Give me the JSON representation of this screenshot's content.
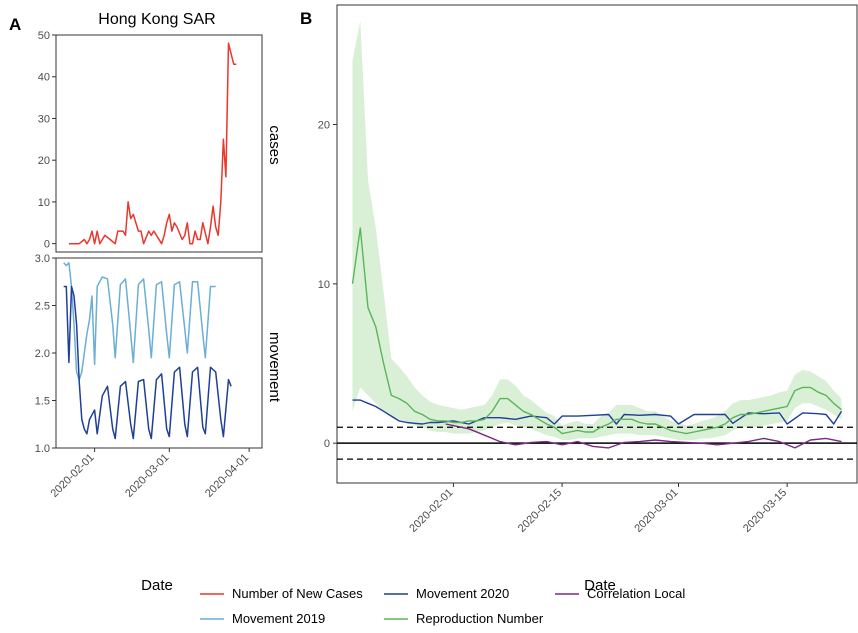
{
  "figure": {
    "panel_a_letter": "A",
    "panel_b_letter": "B"
  },
  "chart_data": [
    {
      "type": "line",
      "panel": "A",
      "title": "Hong Kong SAR",
      "xlabel": "Date",
      "x_ticks": [
        "2020-02-01",
        "2020-03-01",
        "2020-04-01"
      ],
      "facets": [
        {
          "strip": "cases",
          "ylim": [
            -2,
            50
          ],
          "y_ticks": [
            0,
            10,
            20,
            30,
            40,
            50
          ],
          "series": [
            {
              "name": "Number of New Cases",
              "color": "#e8382d",
              "x": [
                "2020-01-22",
                "2020-01-24",
                "2020-01-26",
                "2020-01-28",
                "2020-01-29",
                "2020-01-30",
                "2020-01-31",
                "2020-02-01",
                "2020-02-02",
                "2020-02-03",
                "2020-02-04",
                "2020-02-05",
                "2020-02-07",
                "2020-02-09",
                "2020-02-10",
                "2020-02-11",
                "2020-02-12",
                "2020-02-13",
                "2020-02-14",
                "2020-02-15",
                "2020-02-16",
                "2020-02-18",
                "2020-02-19",
                "2020-02-20",
                "2020-02-22",
                "2020-02-23",
                "2020-02-24",
                "2020-02-25",
                "2020-02-27",
                "2020-02-28",
                "2020-02-29",
                "2020-03-01",
                "2020-03-02",
                "2020-03-03",
                "2020-03-04",
                "2020-03-06",
                "2020-03-07",
                "2020-03-08",
                "2020-03-09",
                "2020-03-10",
                "2020-03-11",
                "2020-03-12",
                "2020-03-13",
                "2020-03-14",
                "2020-03-16",
                "2020-03-17",
                "2020-03-18",
                "2020-03-19",
                "2020-03-20",
                "2020-03-21",
                "2020-03-22",
                "2020-03-23",
                "2020-03-24",
                "2020-03-26",
                "2020-03-27"
              ],
              "y": [
                0,
                0,
                0,
                1,
                0,
                1,
                3,
                0,
                3,
                0,
                1,
                2,
                1,
                0,
                3,
                3,
                3,
                2,
                10,
                6,
                7,
                3,
                3,
                0,
                3,
                2,
                3,
                2,
                0,
                2,
                5,
                7,
                3,
                5,
                4,
                1,
                2,
                5,
                0,
                0,
                3,
                1,
                1,
                5,
                0,
                4,
                9,
                4,
                2,
                10,
                25,
                16,
                48,
                43,
                43
              ]
            }
          ]
        },
        {
          "strip": "movement",
          "ylim": [
            1.0,
            3.0
          ],
          "y_ticks": [
            "1.0",
            "1.5",
            "2.0",
            "2.5",
            "3.0"
          ],
          "series": [
            {
              "name": "Movement 2019",
              "color": "#6baed6",
              "x": [
                "2020-01-20",
                "2020-01-21",
                "2020-01-22",
                "2020-01-23",
                "2020-01-24",
                "2020-01-25",
                "2020-01-26",
                "2020-01-27",
                "2020-01-28",
                "2020-01-29",
                "2020-01-30",
                "2020-01-31",
                "2020-02-01",
                "2020-02-02",
                "2020-02-04",
                "2020-02-06",
                "2020-02-08",
                "2020-02-09",
                "2020-02-11",
                "2020-02-13",
                "2020-02-15",
                "2020-02-16",
                "2020-02-18",
                "2020-02-20",
                "2020-02-22",
                "2020-02-23",
                "2020-02-25",
                "2020-02-27",
                "2020-02-29",
                "2020-03-01",
                "2020-03-03",
                "2020-03-05",
                "2020-03-07",
                "2020-03-08",
                "2020-03-10",
                "2020-03-12",
                "2020-03-14",
                "2020-03-15",
                "2020-03-17",
                "2020-03-19"
              ],
              "y": [
                2.95,
                2.92,
                2.95,
                2.7,
                2.3,
                1.8,
                1.72,
                1.8,
                2.0,
                2.2,
                2.35,
                2.6,
                1.88,
                2.7,
                2.8,
                2.78,
                2.3,
                1.95,
                2.72,
                2.78,
                2.2,
                1.9,
                2.72,
                2.78,
                2.25,
                1.95,
                2.72,
                2.75,
                2.2,
                1.95,
                2.72,
                2.75,
                2.25,
                2.0,
                2.75,
                2.75,
                2.2,
                1.95,
                2.7,
                2.7
              ]
            },
            {
              "name": "Movement 2020",
              "color": "#1f3f99",
              "x": [
                "2020-01-20",
                "2020-01-21",
                "2020-01-22",
                "2020-01-23",
                "2020-01-24",
                "2020-01-25",
                "2020-01-26",
                "2020-01-27",
                "2020-01-28",
                "2020-01-29",
                "2020-01-30",
                "2020-01-31",
                "2020-02-01",
                "2020-02-02",
                "2020-02-04",
                "2020-02-06",
                "2020-02-08",
                "2020-02-09",
                "2020-02-11",
                "2020-02-13",
                "2020-02-15",
                "2020-02-16",
                "2020-02-18",
                "2020-02-20",
                "2020-02-22",
                "2020-02-23",
                "2020-02-25",
                "2020-02-27",
                "2020-02-29",
                "2020-03-01",
                "2020-03-03",
                "2020-03-05",
                "2020-03-07",
                "2020-03-08",
                "2020-03-10",
                "2020-03-12",
                "2020-03-14",
                "2020-03-15",
                "2020-03-17",
                "2020-03-19",
                "2020-03-21",
                "2020-03-22",
                "2020-03-24",
                "2020-03-25"
              ],
              "y": [
                2.7,
                2.7,
                1.9,
                2.7,
                2.6,
                2.3,
                1.7,
                1.3,
                1.2,
                1.15,
                1.3,
                1.35,
                1.4,
                1.15,
                1.55,
                1.65,
                1.2,
                1.1,
                1.65,
                1.7,
                1.25,
                1.1,
                1.7,
                1.72,
                1.2,
                1.1,
                1.72,
                1.78,
                1.2,
                1.12,
                1.8,
                1.85,
                1.25,
                1.12,
                1.8,
                1.85,
                1.22,
                1.15,
                1.85,
                1.8,
                1.3,
                1.12,
                1.72,
                1.65
              ]
            }
          ]
        }
      ]
    },
    {
      "type": "line",
      "panel": "B",
      "xlabel": "Date",
      "ylim": [
        -2.5,
        27.5
      ],
      "y_ticks": [
        0,
        10,
        20
      ],
      "x_ticks": [
        "2020-02-01",
        "2020-02-15",
        "2020-03-01",
        "2020-03-15"
      ],
      "reference_lines": {
        "solid": 0,
        "dashed": [
          -1,
          1
        ]
      },
      "series": [
        {
          "name": "Reproduction Number",
          "color": "#5ab55a",
          "band_color": "#d9efd6",
          "x": [
            "2020-01-19",
            "2020-01-20",
            "2020-01-21",
            "2020-01-22",
            "2020-01-23",
            "2020-01-24",
            "2020-01-25",
            "2020-01-26",
            "2020-01-27",
            "2020-01-28",
            "2020-01-29",
            "2020-01-30",
            "2020-01-31",
            "2020-02-01",
            "2020-02-02",
            "2020-02-03",
            "2020-02-04",
            "2020-02-05",
            "2020-02-06",
            "2020-02-07",
            "2020-02-08",
            "2020-02-09",
            "2020-02-10",
            "2020-02-11",
            "2020-02-12",
            "2020-02-13",
            "2020-02-14",
            "2020-02-15",
            "2020-02-16",
            "2020-02-17",
            "2020-02-18",
            "2020-02-19",
            "2020-02-20",
            "2020-02-21",
            "2020-02-22",
            "2020-02-23",
            "2020-02-24",
            "2020-02-25",
            "2020-02-26",
            "2020-02-27",
            "2020-02-28",
            "2020-02-29",
            "2020-03-01",
            "2020-03-02",
            "2020-03-03",
            "2020-03-04",
            "2020-03-05",
            "2020-03-06",
            "2020-03-07",
            "2020-03-08",
            "2020-03-09",
            "2020-03-10",
            "2020-03-11",
            "2020-03-12",
            "2020-03-13",
            "2020-03-14",
            "2020-03-15",
            "2020-03-16",
            "2020-03-17",
            "2020-03-18",
            "2020-03-19",
            "2020-03-20",
            "2020-03-21",
            "2020-03-22"
          ],
          "y": [
            10,
            13.5,
            8.5,
            7.3,
            5,
            3,
            2.8,
            2.5,
            2,
            1.8,
            1.5,
            1.4,
            1.4,
            1.3,
            1.3,
            1.4,
            1.4,
            1.5,
            2,
            2.8,
            2.8,
            2.4,
            2,
            1.8,
            1.5,
            1.2,
            1,
            0.6,
            0.7,
            0.8,
            0.7,
            0.7,
            1,
            1.2,
            1.5,
            1.5,
            1.5,
            1.3,
            1.2,
            1.2,
            1,
            0.8,
            0.7,
            0.6,
            0.7,
            0.8,
            0.9,
            1,
            1.2,
            1.6,
            1.8,
            1.8,
            1.9,
            2,
            2.1,
            2.2,
            2.3,
            3.3,
            3.5,
            3.5,
            3.2,
            3,
            2.5,
            2.1
          ],
          "lower": [
            2,
            3.5,
            3,
            2.5,
            2,
            1.7,
            1.5,
            1.3,
            1.1,
            1,
            0.8,
            0.7,
            0.7,
            0.6,
            0.6,
            0.6,
            0.7,
            0.8,
            1,
            1.2,
            1.3,
            1.1,
            1,
            0.9,
            0.7,
            0.5,
            0.4,
            0.2,
            0.2,
            0.3,
            0.3,
            0.3,
            0.4,
            0.5,
            0.6,
            0.6,
            0.6,
            0.5,
            0.5,
            0.5,
            0.4,
            0.3,
            0.2,
            0.2,
            0.2,
            0.3,
            0.3,
            0.4,
            0.5,
            0.8,
            1,
            1,
            1,
            1.1,
            1.2,
            1.3,
            1.4,
            2.2,
            2.5,
            2.5,
            2.3,
            2.1,
            1.8,
            1.5
          ],
          "upper": [
            24,
            26.5,
            16.5,
            13.5,
            9.5,
            5.3,
            4.8,
            4.2,
            3.5,
            3,
            2.6,
            2.4,
            2.3,
            2.2,
            2.1,
            2.2,
            2.3,
            2.4,
            3,
            4,
            4,
            3.6,
            3,
            2.7,
            2.3,
            1.9,
            1.7,
            1.1,
            1.3,
            1.4,
            1.2,
            1.2,
            1.7,
            1.9,
            2.4,
            2.4,
            2.4,
            2.2,
            2,
            2,
            1.7,
            1.4,
            1.3,
            1.1,
            1.2,
            1.4,
            1.5,
            1.7,
            2,
            2.5,
            2.7,
            2.7,
            2.8,
            2.9,
            3,
            3.2,
            3.3,
            4.3,
            4.6,
            4.5,
            4.2,
            3.9,
            3.3,
            2.8
          ]
        },
        {
          "name": "Movement 2020",
          "color": "#1f3f99",
          "x": [
            "2020-01-19",
            "2020-01-20",
            "2020-01-21",
            "2020-01-22",
            "2020-01-23",
            "2020-01-24",
            "2020-01-25",
            "2020-01-26",
            "2020-01-27",
            "2020-01-28",
            "2020-01-29",
            "2020-01-30",
            "2020-02-01",
            "2020-02-03",
            "2020-02-05",
            "2020-02-07",
            "2020-02-09",
            "2020-02-11",
            "2020-02-13",
            "2020-02-14",
            "2020-02-15",
            "2020-02-17",
            "2020-02-19",
            "2020-02-21",
            "2020-02-22",
            "2020-02-23",
            "2020-02-25",
            "2020-02-27",
            "2020-02-29",
            "2020-03-01",
            "2020-03-03",
            "2020-03-05",
            "2020-03-07",
            "2020-03-08",
            "2020-03-10",
            "2020-03-12",
            "2020-03-14",
            "2020-03-15",
            "2020-03-17",
            "2020-03-19",
            "2020-03-20",
            "2020-03-21",
            "2020-03-22"
          ],
          "y": [
            2.7,
            2.7,
            2.5,
            2.3,
            2,
            1.7,
            1.4,
            1.3,
            1.25,
            1.2,
            1.3,
            1.3,
            1.4,
            1.2,
            1.6,
            1.6,
            1.5,
            1.7,
            1.6,
            1.2,
            1.7,
            1.7,
            1.75,
            1.8,
            1.2,
            1.8,
            1.75,
            1.8,
            1.7,
            1.2,
            1.8,
            1.8,
            1.8,
            1.25,
            1.9,
            1.85,
            1.9,
            1.2,
            1.9,
            1.85,
            1.8,
            1.2,
            2
          ]
        },
        {
          "name": "Correlation Local",
          "color": "#7b2a83",
          "x": [
            "2020-01-31",
            "2020-02-01",
            "2020-02-03",
            "2020-02-05",
            "2020-02-07",
            "2020-02-09",
            "2020-02-11",
            "2020-02-13",
            "2020-02-15",
            "2020-02-17",
            "2020-02-19",
            "2020-02-21",
            "2020-02-23",
            "2020-02-25",
            "2020-02-27",
            "2020-02-29",
            "2020-03-02",
            "2020-03-04",
            "2020-03-06",
            "2020-03-08",
            "2020-03-10",
            "2020-03-12",
            "2020-03-14",
            "2020-03-16",
            "2020-03-18",
            "2020-03-20",
            "2020-03-22"
          ],
          "y": [
            1.2,
            1.1,
            0.9,
            0.5,
            0.1,
            -0.1,
            0.05,
            0.1,
            -0.1,
            0.1,
            -0.2,
            -0.3,
            0.05,
            0.1,
            0.2,
            0.1,
            0.05,
            0,
            -0.1,
            0,
            0.1,
            0.3,
            0.1,
            -0.3,
            0.2,
            0.3,
            0.1
          ]
        }
      ]
    }
  ],
  "legend": {
    "items": [
      {
        "label": "Number of New Cases",
        "color": "#e8382d"
      },
      {
        "label": "Movement 2020",
        "color": "#1f3f99"
      },
      {
        "label": "Correlation Local",
        "color": "#7b2a83"
      },
      {
        "label": "Movement 2019",
        "color": "#6baed6"
      },
      {
        "label": "Reproduction Number",
        "color": "#5ab55a"
      }
    ]
  }
}
